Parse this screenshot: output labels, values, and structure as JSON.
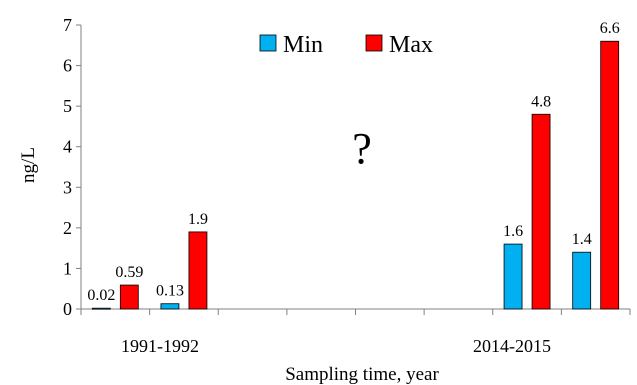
{
  "chart_data": {
    "type": "bar",
    "title": "",
    "xlabel": "Sampling time, year",
    "ylabel": "ng/L",
    "ylim": [
      0,
      7
    ],
    "yticks": [
      0,
      1,
      2,
      3,
      4,
      5,
      6,
      7
    ],
    "grid": false,
    "legend_position": "top-center",
    "group_labels": [
      "1991-1992",
      "2014-2015"
    ],
    "annotation": "?",
    "colors": {
      "Min": "#00B0F0",
      "Max": "#FF0000"
    },
    "series": [
      {
        "name": "Min",
        "values": [
          0.02,
          0.13,
          null,
          null,
          null,
          null,
          1.6,
          1.4
        ]
      },
      {
        "name": "Max",
        "values": [
          0.59,
          1.9,
          null,
          null,
          null,
          null,
          4.8,
          6.6
        ]
      }
    ],
    "data_labels": {
      "Min": [
        "0.02",
        "0.13",
        "",
        "",
        "",
        "",
        "1.6",
        "1.4"
      ],
      "Max": [
        "0.59",
        "1.9",
        "",
        "",
        "",
        "",
        "4.8",
        "6.6"
      ]
    }
  }
}
